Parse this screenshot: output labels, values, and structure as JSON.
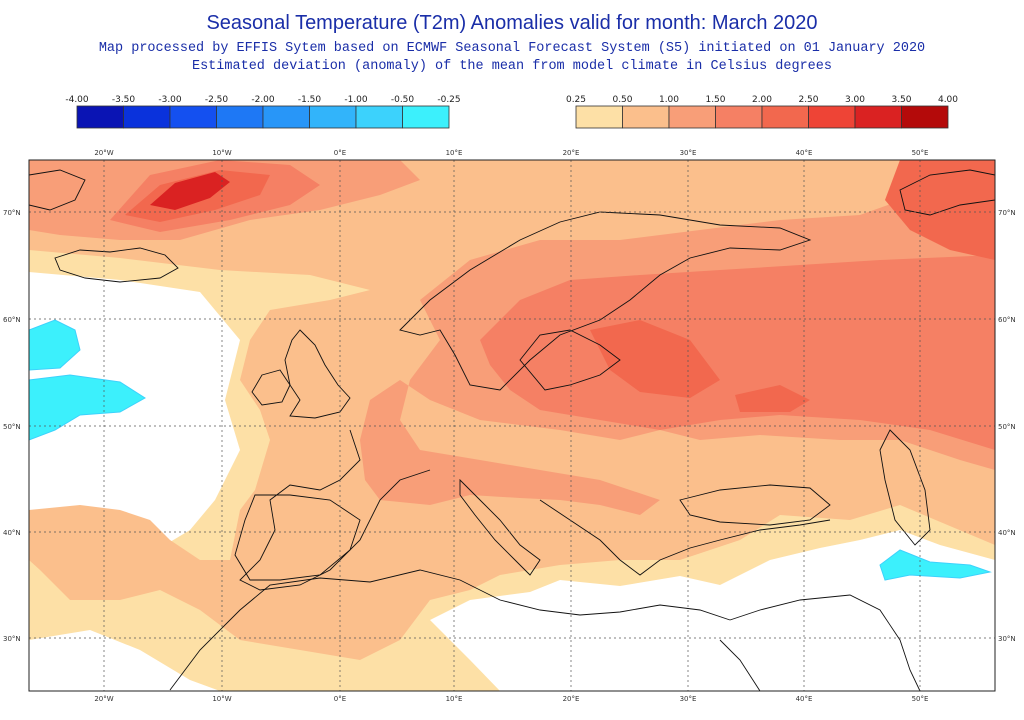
{
  "header": {
    "title": "Seasonal Temperature (T2m) Anomalies valid for month: March 2020",
    "subtitle1": "Map processed by EFFIS Sytem based on ECMWF Seasonal Forecast System (S5) initiated on 01 January 2020",
    "subtitle2": "Estimated deviation (anomaly) of the mean from model climate in Celsius degrees"
  },
  "legend_cold": {
    "labels": [
      "-4.00",
      "-3.50",
      "-3.00",
      "-2.50",
      "-2.00",
      "-1.50",
      "-1.00",
      "-0.50",
      "-0.25"
    ],
    "colors": [
      "#0a14b4",
      "#0a32dc",
      "#1450f0",
      "#1e78f5",
      "#2896f8",
      "#32b4fa",
      "#3cd2fc",
      "#3cf0fc"
    ]
  },
  "legend_warm": {
    "labels": [
      "0.25",
      "0.50",
      "1.00",
      "1.50",
      "2.00",
      "2.50",
      "3.00",
      "3.50",
      "4.00"
    ],
    "colors": [
      "#fde0a6",
      "#fbbf8c",
      "#f89e78",
      "#f58064",
      "#f2684e",
      "#ee4436",
      "#da2222",
      "#b40a0a"
    ]
  },
  "longitudes": [
    "20°W",
    "10°W",
    "0°E",
    "10°E",
    "20°E",
    "30°E",
    "40°E",
    "50°E"
  ],
  "latitudes": [
    "70°N",
    "60°N",
    "50°N",
    "40°N",
    "30°N"
  ],
  "colors": {
    "title": "#1a2ea8",
    "coast": "#111111"
  }
}
